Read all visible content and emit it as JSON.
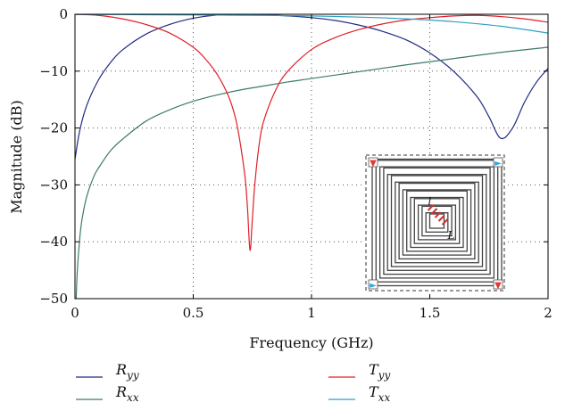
{
  "chart_data": {
    "type": "line",
    "title": "",
    "xlabel": "Frequency (GHz)",
    "ylabel": "Magnitude (dB)",
    "xlim": [
      0,
      2
    ],
    "ylim": [
      -50,
      0
    ],
    "xticks": [
      0,
      0.5,
      1,
      1.5,
      2
    ],
    "xtick_labels": [
      "0",
      "0.5",
      "1",
      "1.5",
      "2"
    ],
    "yticks": [
      0,
      -10,
      -20,
      -30,
      -40,
      -50
    ],
    "ytick_labels": [
      "0",
      "−10",
      "−20",
      "−30",
      "−40",
      "−50"
    ],
    "grid": "dotted",
    "legend_position": "below",
    "series": [
      {
        "name": "R_yy",
        "label_main": "R",
        "label_sub": "yy",
        "color": "#1f2a80",
        "x": [
          0,
          0.02,
          0.05,
          0.1,
          0.15,
          0.2,
          0.3,
          0.4,
          0.5,
          0.6,
          0.7,
          0.8,
          0.9,
          1.0,
          1.1,
          1.2,
          1.3,
          1.4,
          1.5,
          1.6,
          1.7,
          1.75,
          1.8,
          1.85,
          1.9,
          1.95,
          2.0
        ],
        "y": [
          -25.5,
          -20.5,
          -16,
          -11.5,
          -8.5,
          -6.3,
          -3.5,
          -1.8,
          -0.7,
          -0.15,
          0,
          -0.1,
          -0.3,
          -0.6,
          -1.1,
          -1.9,
          -3.0,
          -4.5,
          -6.8,
          -10,
          -14.5,
          -18,
          -21.8,
          -20,
          -15.5,
          -12,
          -9.5
        ]
      },
      {
        "name": "R_xx",
        "label_main": "R",
        "label_sub": "xx",
        "color": "#3d7a66",
        "x": [
          0.005,
          0.01,
          0.02,
          0.03,
          0.05,
          0.08,
          0.1,
          0.15,
          0.2,
          0.3,
          0.4,
          0.5,
          0.6,
          0.7,
          0.8,
          0.9,
          1.0,
          1.2,
          1.4,
          1.6,
          1.8,
          2.0
        ],
        "y": [
          -50,
          -45,
          -39.5,
          -36,
          -32,
          -28.5,
          -27,
          -24,
          -22,
          -18.8,
          -16.8,
          -15.3,
          -14.2,
          -13.3,
          -12.6,
          -11.9,
          -11.3,
          -10.1,
          -8.9,
          -7.8,
          -6.7,
          -5.8
        ]
      },
      {
        "name": "T_yy",
        "label_main": "T",
        "label_sub": "yy",
        "color": "#e01f26",
        "x": [
          0,
          0.1,
          0.2,
          0.3,
          0.4,
          0.5,
          0.55,
          0.6,
          0.65,
          0.68,
          0.7,
          0.72,
          0.73,
          0.74,
          0.75,
          0.76,
          0.78,
          0.8,
          0.85,
          0.9,
          1.0,
          1.1,
          1.2,
          1.3,
          1.4,
          1.5,
          1.6,
          1.7,
          1.8,
          1.9,
          2.0
        ],
        "y": [
          0,
          -0.2,
          -0.8,
          -1.8,
          -3.3,
          -5.8,
          -7.8,
          -10.5,
          -14.5,
          -18.5,
          -23,
          -29,
          -34.5,
          -41.5,
          -36,
          -30,
          -22.5,
          -18.5,
          -13.2,
          -10,
          -6.2,
          -4.1,
          -2.7,
          -1.7,
          -1.0,
          -0.6,
          -0.3,
          -0.2,
          -0.4,
          -0.8,
          -1.4
        ]
      },
      {
        "name": "T_xx",
        "label_main": "T",
        "label_sub": "xx",
        "color": "#2ba0c4",
        "x": [
          0,
          0.2,
          0.4,
          0.6,
          0.8,
          1.0,
          1.2,
          1.4,
          1.6,
          1.8,
          2.0
        ],
        "y": [
          -0.02,
          -0.05,
          -0.1,
          -0.15,
          -0.2,
          -0.3,
          -0.5,
          -0.8,
          -1.3,
          -2.1,
          -3.3
        ]
      }
    ]
  },
  "inset": {
    "labels": {
      "w": "l",
      "l": "L"
    },
    "markers": [
      {
        "corner": "top-left",
        "color": "#e53935",
        "glyph": "▼"
      },
      {
        "corner": "top-right",
        "color": "#29a8e0",
        "glyph": "►"
      },
      {
        "corner": "bottom-left",
        "color": "#29a8e0",
        "glyph": "►"
      },
      {
        "corner": "bottom-right",
        "color": "#e53935",
        "glyph": "▼"
      }
    ]
  }
}
